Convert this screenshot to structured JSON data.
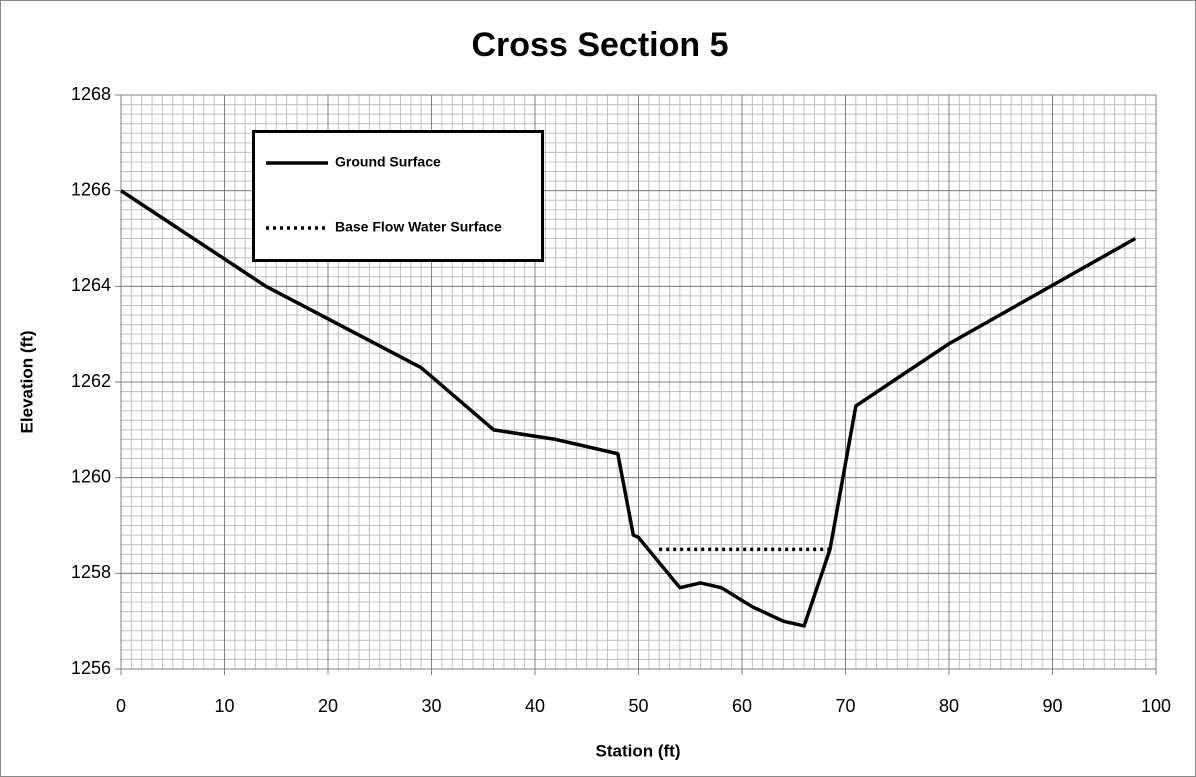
{
  "chart_data": {
    "type": "line",
    "title": "Cross Section 5",
    "xlabel": "Station (ft)",
    "ylabel": "Elevation (ft)",
    "xlim": [
      0,
      100
    ],
    "ylim": [
      1256,
      1268
    ],
    "xticks": [
      0,
      10,
      20,
      30,
      40,
      50,
      60,
      70,
      80,
      90,
      100
    ],
    "yticks": [
      1256,
      1258,
      1260,
      1262,
      1264,
      1266,
      1268
    ],
    "grid": true,
    "xminor": 1,
    "yminor": 0.2,
    "legend": "upper left",
    "series": [
      {
        "name": "Ground Surface",
        "color": "#000000",
        "style": "solid",
        "x": [
          0,
          14,
          29,
          36,
          42,
          48,
          49.5,
          50,
          54,
          56,
          58,
          61,
          64,
          66,
          68.5,
          71,
          80,
          98
        ],
        "values": [
          1266,
          1264,
          1262.3,
          1261,
          1260.8,
          1260.5,
          1258.8,
          1258.75,
          1257.7,
          1257.8,
          1257.7,
          1257.3,
          1257,
          1256.9,
          1258.5,
          1261.5,
          1262.8,
          1265
        ]
      },
      {
        "name": "Base Flow Water Surface",
        "color": "#000000",
        "style": "dotted",
        "x": [
          52,
          68.5
        ],
        "values": [
          1258.5,
          1258.5
        ]
      }
    ]
  }
}
